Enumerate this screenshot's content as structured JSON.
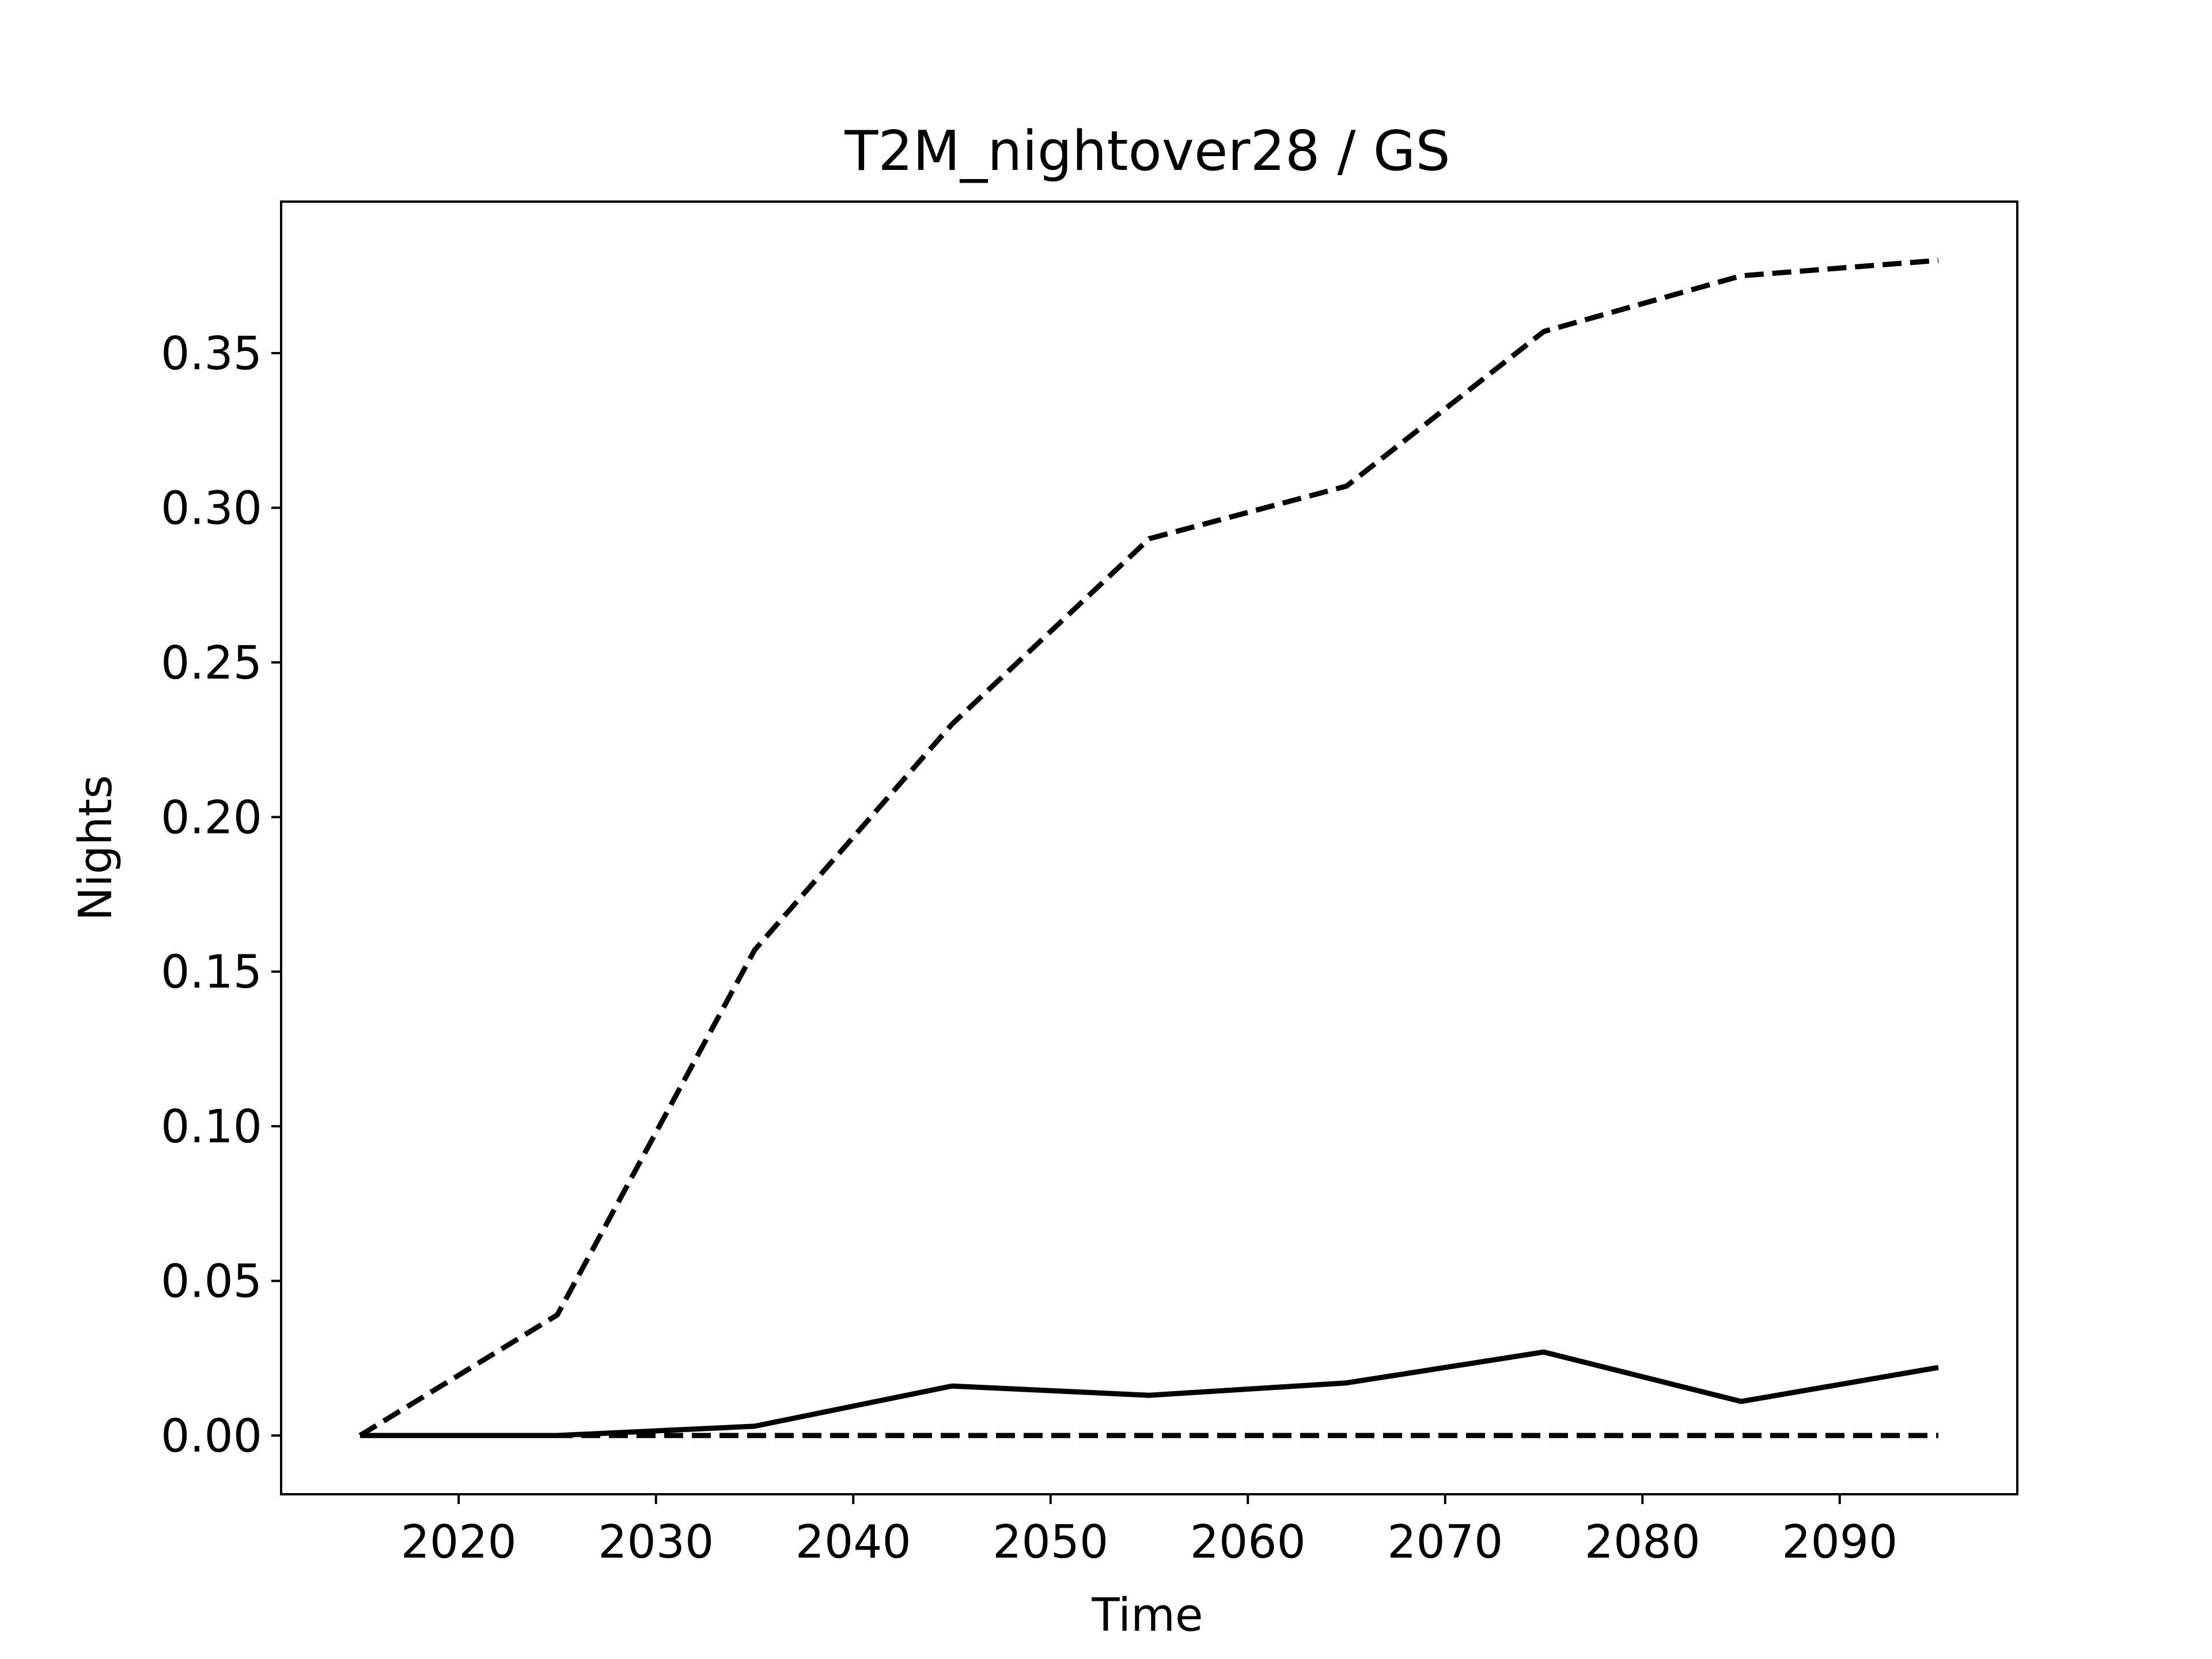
{
  "chart_data": {
    "type": "line",
    "title": "T2M_nightover28 / GS",
    "xlabel": "Time",
    "ylabel": "Nights",
    "xlim": [
      2011,
      2099
    ],
    "ylim": [
      -0.019,
      0.399
    ],
    "xticks": [
      2020,
      2030,
      2040,
      2050,
      2060,
      2070,
      2080,
      2090
    ],
    "yticks": [
      0.0,
      0.05,
      0.1,
      0.15,
      0.2,
      0.25,
      0.3,
      0.35
    ],
    "ytick_decimals": 2,
    "grid": false,
    "legend": "none",
    "x": [
      2015,
      2025,
      2035,
      2045,
      2055,
      2065,
      2075,
      2085,
      2095
    ],
    "series": [
      {
        "style": "dashed",
        "color": "#000000",
        "values": [
          0.0,
          0.039,
          0.157,
          0.23,
          0.29,
          0.307,
          0.357,
          0.375,
          0.38
        ]
      },
      {
        "style": "solid",
        "color": "#000000",
        "values": [
          0.0,
          0.0,
          0.003,
          0.016,
          0.013,
          0.017,
          0.027,
          0.011,
          0.022
        ]
      },
      {
        "style": "dashed",
        "color": "#000000",
        "values": [
          0.0,
          0.0,
          0.0,
          0.0,
          0.0,
          0.0,
          0.0,
          0.0,
          0.0
        ]
      }
    ]
  }
}
